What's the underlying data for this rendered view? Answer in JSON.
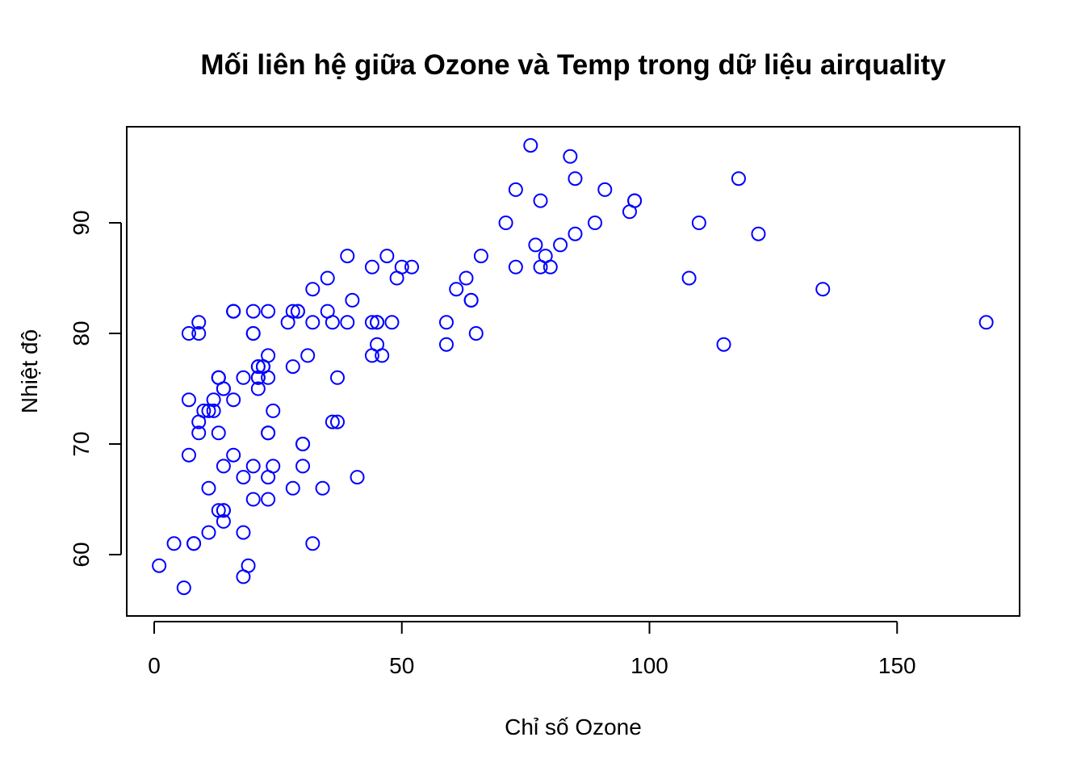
{
  "chart_data": {
    "type": "scatter",
    "title": "Mối liên hệ giữa Ozone và Temp trong dữ liệu airquality",
    "xlabel": "Chỉ số Ozone",
    "ylabel": "Nhiệt độ",
    "xlim": [
      0,
      168
    ],
    "ylim": [
      57,
      97
    ],
    "x_ticks": [
      0,
      50,
      100,
      150
    ],
    "y_ticks": [
      60,
      70,
      80,
      90
    ],
    "grid": false,
    "marker": "open-circle",
    "color": "#0000ff",
    "series": [
      {
        "points": [
          [
            41,
            67
          ],
          [
            36,
            72
          ],
          [
            12,
            74
          ],
          [
            18,
            62
          ],
          [
            28,
            66
          ],
          [
            23,
            65
          ],
          [
            19,
            59
          ],
          [
            8,
            61
          ],
          [
            7,
            74
          ],
          [
            16,
            69
          ],
          [
            11,
            66
          ],
          [
            14,
            68
          ],
          [
            18,
            58
          ],
          [
            14,
            64
          ],
          [
            34,
            66
          ],
          [
            6,
            57
          ],
          [
            30,
            68
          ],
          [
            11,
            62
          ],
          [
            1,
            59
          ],
          [
            11,
            73
          ],
          [
            4,
            61
          ],
          [
            32,
            61
          ],
          [
            23,
            67
          ],
          [
            45,
            81
          ],
          [
            115,
            79
          ],
          [
            37,
            76
          ],
          [
            29,
            82
          ],
          [
            71,
            90
          ],
          [
            39,
            87
          ],
          [
            23,
            82
          ],
          [
            21,
            77
          ],
          [
            37,
            72
          ],
          [
            20,
            65
          ],
          [
            12,
            73
          ],
          [
            13,
            76
          ],
          [
            135,
            84
          ],
          [
            49,
            85
          ],
          [
            32,
            81
          ],
          [
            64,
            83
          ],
          [
            40,
            83
          ],
          [
            77,
            88
          ],
          [
            97,
            92
          ],
          [
            97,
            92
          ],
          [
            85,
            89
          ],
          [
            10,
            73
          ],
          [
            27,
            81
          ],
          [
            7,
            80
          ],
          [
            48,
            81
          ],
          [
            35,
            82
          ],
          [
            61,
            84
          ],
          [
            79,
            87
          ],
          [
            63,
            85
          ],
          [
            16,
            74
          ],
          [
            80,
            86
          ],
          [
            108,
            85
          ],
          [
            20,
            82
          ],
          [
            52,
            86
          ],
          [
            82,
            88
          ],
          [
            50,
            86
          ],
          [
            64,
            83
          ],
          [
            59,
            81
          ],
          [
            39,
            81
          ],
          [
            9,
            81
          ],
          [
            16,
            82
          ],
          [
            78,
            86
          ],
          [
            35,
            85
          ],
          [
            66,
            87
          ],
          [
            122,
            89
          ],
          [
            89,
            90
          ],
          [
            110,
            90
          ],
          [
            44,
            86
          ],
          [
            28,
            82
          ],
          [
            65,
            80
          ],
          [
            22,
            77
          ],
          [
            59,
            79
          ],
          [
            23,
            76
          ],
          [
            31,
            78
          ],
          [
            44,
            78
          ],
          [
            21,
            77
          ],
          [
            9,
            72
          ],
          [
            45,
            79
          ],
          [
            168,
            81
          ],
          [
            73,
            86
          ],
          [
            76,
            97
          ],
          [
            118,
            94
          ],
          [
            84,
            96
          ],
          [
            85,
            94
          ],
          [
            96,
            91
          ],
          [
            78,
            92
          ],
          [
            73,
            93
          ],
          [
            91,
            93
          ],
          [
            47,
            87
          ],
          [
            32,
            84
          ],
          [
            20,
            80
          ],
          [
            23,
            78
          ],
          [
            21,
            75
          ],
          [
            24,
            73
          ],
          [
            44,
            81
          ],
          [
            21,
            76
          ],
          [
            28,
            77
          ],
          [
            9,
            71
          ],
          [
            13,
            71
          ],
          [
            46,
            78
          ],
          [
            18,
            67
          ],
          [
            13,
            76
          ],
          [
            24,
            68
          ],
          [
            16,
            82
          ],
          [
            13,
            64
          ],
          [
            23,
            71
          ],
          [
            36,
            81
          ],
          [
            7,
            69
          ],
          [
            14,
            63
          ],
          [
            30,
            70
          ],
          [
            14,
            75
          ],
          [
            18,
            76
          ],
          [
            20,
            68
          ],
          [
            9,
            80
          ],
          [
            8,
            61
          ],
          [
            45,
            81
          ],
          [
            14,
            64
          ],
          [
            13,
            76
          ],
          [
            22,
            77
          ],
          [
            21,
            76
          ],
          [
            16,
            82
          ],
          [
            20,
            80
          ],
          [
            22,
            77
          ],
          [
            14,
            75
          ],
          [
            29,
            82
          ],
          [
            30,
            70
          ],
          [
            23,
            71
          ]
        ]
      }
    ]
  }
}
